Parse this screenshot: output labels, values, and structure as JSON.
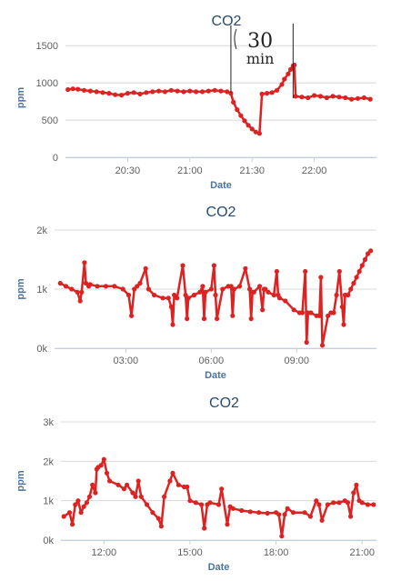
{
  "chart_data": [
    {
      "type": "line",
      "title": "CO2",
      "xlabel": "Date",
      "ylabel": "ppm",
      "ylim": [
        0,
        1600
      ],
      "yticks": [
        "0",
        "500",
        "1000",
        "1500"
      ],
      "ytick_values": [
        0,
        500,
        1000,
        1500
      ],
      "xlim": [
        20.0,
        22.5
      ],
      "xticks": [
        "20:30",
        "21:00",
        "21:30",
        "22:00"
      ],
      "xtick_values": [
        20.5,
        21.0,
        21.5,
        22.0
      ],
      "grid": true,
      "color": "#dd2222",
      "annotation": {
        "text_line1": "30",
        "text_line2": "min",
        "x_start": 21.33,
        "x_end": 21.83
      },
      "series": [
        {
          "x": [
            20.02,
            20.06,
            20.1,
            20.15,
            20.2,
            20.25,
            20.3,
            20.35,
            20.4,
            20.45,
            20.5,
            20.55,
            20.6,
            20.65,
            20.7,
            20.75,
            20.8,
            20.85,
            20.9,
            20.95,
            21.0,
            21.05,
            21.1,
            21.15,
            21.2,
            21.25,
            21.3,
            21.33,
            21.35,
            21.38,
            21.41,
            21.44,
            21.47,
            21.5,
            21.53,
            21.56,
            21.58,
            21.62,
            21.66,
            21.7,
            21.74,
            21.76,
            21.79,
            21.81,
            21.83,
            21.84,
            21.85,
            21.9,
            21.95,
            22.0,
            22.05,
            22.1,
            22.15,
            22.2,
            22.25,
            22.3,
            22.35,
            22.4,
            22.45
          ],
          "y": [
            910,
            920,
            915,
            900,
            890,
            880,
            870,
            860,
            840,
            835,
            860,
            870,
            850,
            870,
            880,
            890,
            880,
            900,
            890,
            880,
            890,
            880,
            880,
            890,
            900,
            890,
            880,
            860,
            740,
            640,
            560,
            490,
            430,
            380,
            340,
            320,
            850,
            860,
            870,
            900,
            980,
            1050,
            1120,
            1180,
            1230,
            1240,
            820,
            810,
            800,
            830,
            820,
            800,
            820,
            810,
            800,
            780,
            790,
            800,
            780
          ]
        }
      ]
    },
    {
      "type": "line",
      "title": "CO2",
      "xlabel": "Date",
      "ylabel": "ppm",
      "ylim": [
        0,
        2000
      ],
      "yticks": [
        "0k",
        "1k",
        "2k"
      ],
      "ytick_values": [
        0,
        1000,
        2000
      ],
      "xlim": [
        0.5,
        11.8
      ],
      "xticks": [
        "03:00",
        "06:00",
        "09:00"
      ],
      "xtick_values": [
        3.0,
        6.0,
        9.0
      ],
      "grid": true,
      "color": "#dd2222",
      "series": [
        {
          "x": [
            0.7,
            0.9,
            1.1,
            1.3,
            1.4,
            1.45,
            1.55,
            1.6,
            1.7,
            1.75,
            2.0,
            2.3,
            2.6,
            2.9,
            3.1,
            3.2,
            3.3,
            3.4,
            3.5,
            3.7,
            3.8,
            4.0,
            4.3,
            4.5,
            4.6,
            4.65,
            4.7,
            4.8,
            5.0,
            5.1,
            5.15,
            5.2,
            5.4,
            5.6,
            5.7,
            5.75,
            5.8,
            6.0,
            6.1,
            6.15,
            6.2,
            6.4,
            6.6,
            6.7,
            6.75,
            6.8,
            7.0,
            7.2,
            7.35,
            7.4,
            7.45,
            7.5,
            7.7,
            7.8,
            7.85,
            7.9,
            8.0,
            8.2,
            8.3,
            8.35,
            8.4,
            8.6,
            8.9,
            9.1,
            9.2,
            9.3,
            9.35,
            9.4,
            9.5,
            9.7,
            9.8,
            9.85,
            9.9,
            10.1,
            10.2,
            10.3,
            10.4,
            10.5,
            10.6,
            10.65,
            10.7,
            10.8,
            10.9,
            11.0,
            11.1,
            11.2,
            11.3,
            11.4,
            11.5,
            11.6
          ],
          "y": [
            1100,
            1050,
            1000,
            950,
            800,
            950,
            1450,
            1100,
            1050,
            1080,
            1050,
            1050,
            1050,
            1000,
            900,
            550,
            1000,
            1050,
            1100,
            1350,
            1000,
            900,
            850,
            850,
            700,
            400,
            900,
            850,
            1400,
            900,
            500,
            850,
            900,
            950,
            1050,
            500,
            950,
            1000,
            1400,
            900,
            500,
            1000,
            1050,
            1050,
            550,
            1000,
            1050,
            1350,
            1000,
            500,
            950,
            950,
            1050,
            650,
            1000,
            1000,
            950,
            900,
            1300,
            900,
            850,
            800,
            650,
            600,
            600,
            1300,
            100,
            600,
            600,
            550,
            550,
            1200,
            50,
            550,
            600,
            600,
            900,
            1300,
            700,
            400,
            900,
            900,
            1000,
            1100,
            1200,
            1300,
            1400,
            1500,
            1600,
            1650
          ]
        }
      ]
    },
    {
      "type": "line",
      "title": "CO2",
      "xlabel": "Date",
      "ylabel": "ppm",
      "ylim": [
        0,
        3000
      ],
      "yticks": [
        "0k",
        "1k",
        "2k",
        "3k"
      ],
      "ytick_values": [
        0,
        1000,
        2000,
        3000
      ],
      "xlim": [
        10.5,
        21.5
      ],
      "xticks": [
        "12:00",
        "15:00",
        "18:00",
        "21:00"
      ],
      "xtick_values": [
        12.0,
        15.0,
        18.0,
        21.0
      ],
      "grid": true,
      "color": "#dd2222",
      "series": [
        {
          "x": [
            10.6,
            10.8,
            10.9,
            11.0,
            11.1,
            11.2,
            11.3,
            11.4,
            11.5,
            11.6,
            11.7,
            11.75,
            11.8,
            11.9,
            12.0,
            12.1,
            12.2,
            12.5,
            12.7,
            12.8,
            13.0,
            13.1,
            13.2,
            13.3,
            13.5,
            13.7,
            13.9,
            14.0,
            14.1,
            14.3,
            14.4,
            14.6,
            14.8,
            14.9,
            15.0,
            15.2,
            15.4,
            15.5,
            15.6,
            15.7,
            16.0,
            16.1,
            16.3,
            16.4,
            16.5,
            16.8,
            17.1,
            17.4,
            17.7,
            18.0,
            18.1,
            18.2,
            18.3,
            18.4,
            18.6,
            19.0,
            19.2,
            19.4,
            19.5,
            19.6,
            19.8,
            20.0,
            20.2,
            20.4,
            20.5,
            20.6,
            20.7,
            20.8,
            20.9,
            21.0,
            21.2,
            21.4
          ],
          "y": [
            600,
            700,
            400,
            900,
            1000,
            700,
            850,
            950,
            1100,
            1400,
            1200,
            1800,
            1850,
            1900,
            2050,
            1700,
            1500,
            1400,
            1300,
            1400,
            1200,
            1100,
            1500,
            1100,
            900,
            700,
            550,
            350,
            1100,
            1500,
            1700,
            1400,
            1350,
            1350,
            1000,
            950,
            900,
            300,
            900,
            950,
            900,
            1300,
            400,
            850,
            800,
            750,
            720,
            700,
            680,
            700,
            650,
            100,
            650,
            800,
            700,
            700,
            600,
            1000,
            900,
            500,
            900,
            950,
            950,
            1000,
            950,
            600,
            1200,
            1400,
            1000,
            950,
            900,
            900
          ]
        }
      ]
    }
  ]
}
